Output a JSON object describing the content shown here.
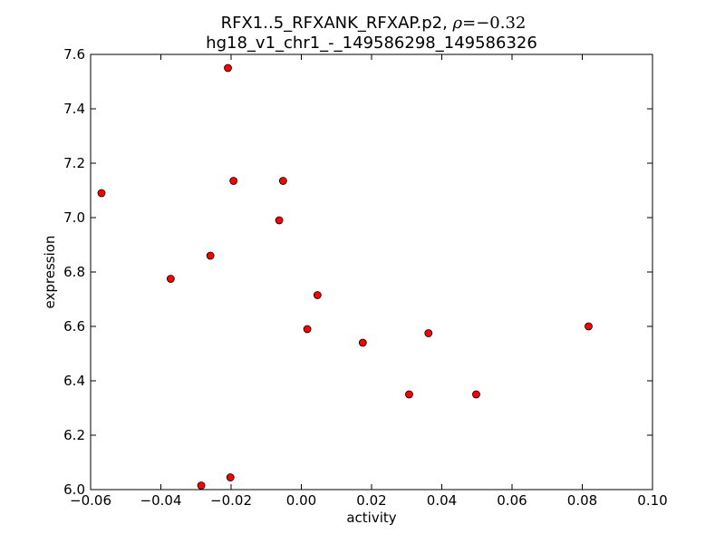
{
  "chart_data": {
    "type": "scatter",
    "title_line1_prefix": "RFX1..5_RFXANK_RFXAP.p2, ",
    "title_rho_symbol": "ρ",
    "title_rho_value": "=−0.32",
    "title_line2": "hg18_v1_chr1_-_149586298_149586326",
    "xlabel": "activity",
    "ylabel": "expression",
    "xlim": [
      -0.06,
      0.1
    ],
    "ylim": [
      6.0,
      7.6
    ],
    "xticks": [
      -0.06,
      -0.04,
      -0.02,
      0.0,
      0.02,
      0.04,
      0.06,
      0.08,
      0.1
    ],
    "xtick_labels": [
      "−0.06",
      "−0.04",
      "−0.02",
      "0.00",
      "0.02",
      "0.04",
      "0.06",
      "0.08",
      "0.10"
    ],
    "yticks": [
      6.0,
      6.2,
      6.4,
      6.6,
      6.8,
      7.0,
      7.2,
      7.4,
      7.6
    ],
    "ytick_labels": [
      "6.0",
      "6.2",
      "6.4",
      "6.6",
      "6.8",
      "7.0",
      "7.2",
      "7.4",
      "7.6"
    ],
    "grid": false,
    "marker_color": "#ff0000",
    "marker_edge_color": "#000000",
    "points": [
      {
        "x": -0.0569,
        "y": 7.09
      },
      {
        "x": -0.0372,
        "y": 6.775
      },
      {
        "x": -0.0285,
        "y": 6.015
      },
      {
        "x": -0.0259,
        "y": 6.86
      },
      {
        "x": -0.0209,
        "y": 7.55
      },
      {
        "x": -0.0202,
        "y": 6.045
      },
      {
        "x": -0.0193,
        "y": 7.135
      },
      {
        "x": -0.0063,
        "y": 6.99
      },
      {
        "x": -0.0052,
        "y": 7.135
      },
      {
        "x": 0.0017,
        "y": 6.59
      },
      {
        "x": 0.0046,
        "y": 6.715
      },
      {
        "x": 0.0175,
        "y": 6.54
      },
      {
        "x": 0.0307,
        "y": 6.35
      },
      {
        "x": 0.0362,
        "y": 6.575
      },
      {
        "x": 0.0498,
        "y": 6.35
      },
      {
        "x": 0.0818,
        "y": 6.6
      }
    ]
  }
}
